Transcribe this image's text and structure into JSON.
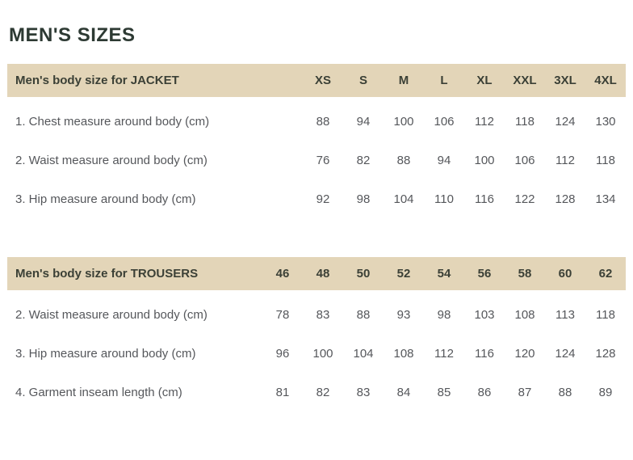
{
  "page_title": "MEN'S SIZES",
  "colors": {
    "header_bg": "#e3d5b8",
    "title_text": "#2d3a33",
    "header_text": "#3b4036",
    "body_text": "#55575b",
    "page_bg": "#ffffff"
  },
  "jacket": {
    "title": "Men's body size for JACKET",
    "sizes": [
      "XS",
      "S",
      "M",
      "L",
      "XL",
      "XXL",
      "3XL",
      "4XL"
    ],
    "rows": [
      {
        "label": "1. Chest measure around body (cm)",
        "values": [
          "88",
          "94",
          "100",
          "106",
          "112",
          "118",
          "124",
          "130"
        ]
      },
      {
        "label": "2. Waist measure around body (cm)",
        "values": [
          "76",
          "82",
          "88",
          "94",
          "100",
          "106",
          "112",
          "118"
        ]
      },
      {
        "label": "3. Hip measure around body (cm)",
        "values": [
          "92",
          "98",
          "104",
          "110",
          "116",
          "122",
          "128",
          "134"
        ]
      }
    ]
  },
  "trousers": {
    "title": "Men's body size for TROUSERS",
    "sizes": [
      "46",
      "48",
      "50",
      "52",
      "54",
      "56",
      "58",
      "60",
      "62"
    ],
    "rows": [
      {
        "label": "2. Waist measure around body (cm)",
        "values": [
          "78",
          "83",
          "88",
          "93",
          "98",
          "103",
          "108",
          "113",
          "118"
        ]
      },
      {
        "label": "3. Hip measure around body (cm)",
        "values": [
          "96",
          "100",
          "104",
          "108",
          "112",
          "116",
          "120",
          "124",
          "128"
        ]
      },
      {
        "label": "4. Garment inseam length (cm)",
        "values": [
          "81",
          "82",
          "83",
          "84",
          "85",
          "86",
          "87",
          "88",
          "89"
        ]
      }
    ]
  }
}
